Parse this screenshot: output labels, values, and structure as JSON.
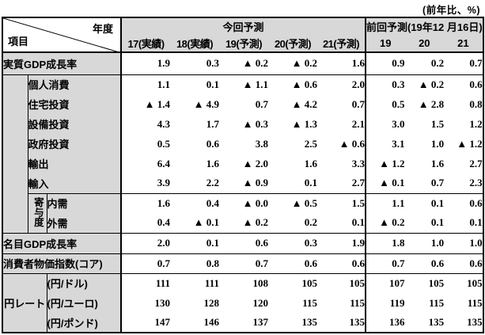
{
  "note": "(前年比、%)",
  "colors": {
    "header_bg": "#d8d8d8",
    "border": "#000000",
    "page_bg": "#ffffff"
  },
  "header": {
    "axis_year": "年度",
    "axis_item": "項目",
    "current_group": "今回予測",
    "current_columns": [
      "17(実績)",
      "18(実績)",
      "19(予測)",
      "20(予測)",
      "21(予測)"
    ],
    "previous_group": "前回予測(19年12 月16日)",
    "previous_columns": [
      "19",
      "20",
      "21"
    ]
  },
  "groups": {
    "contribution": "寄与度",
    "yen_rate": "円レート"
  },
  "rows": [
    {
      "label": "実質GDP成長率",
      "current": [
        "1.9",
        "0.3",
        "▲ 0.2",
        "▲ 0.2",
        "1.6"
      ],
      "previous": [
        "0.9",
        "0.2",
        "0.7"
      ]
    },
    {
      "label": "個人消費",
      "current": [
        "1.1",
        "0.1",
        "▲ 1.1",
        "▲ 0.6",
        "2.0"
      ],
      "previous": [
        "0.3",
        "▲ 0.2",
        "0.6"
      ]
    },
    {
      "label": "住宅投資",
      "current": [
        "▲ 1.4",
        "▲ 4.9",
        "0.7",
        "▲ 4.2",
        "0.7"
      ],
      "previous": [
        "0.5",
        "▲ 2.8",
        "0.8"
      ]
    },
    {
      "label": "設備投資",
      "current": [
        "4.3",
        "1.7",
        "▲ 0.3",
        "▲ 1.3",
        "2.1"
      ],
      "previous": [
        "3.0",
        "1.5",
        "1.2"
      ]
    },
    {
      "label": "政府投資",
      "current": [
        "0.5",
        "0.6",
        "3.8",
        "2.5",
        "▲ 0.6"
      ],
      "previous": [
        "3.1",
        "1.0",
        "▲ 1.2"
      ]
    },
    {
      "label": "輸出",
      "current": [
        "6.4",
        "1.6",
        "▲ 2.0",
        "1.6",
        "3.3"
      ],
      "previous": [
        "▲ 1.2",
        "1.6",
        "2.7"
      ]
    },
    {
      "label": "輸入",
      "current": [
        "3.9",
        "2.2",
        "▲ 0.9",
        "0.1",
        "2.7"
      ],
      "previous": [
        "▲ 0.1",
        "0.7",
        "2.3"
      ]
    },
    {
      "label": "内需",
      "current": [
        "1.6",
        "0.4",
        "▲ 0.0",
        "▲ 0.5",
        "1.5"
      ],
      "previous": [
        "1.1",
        "0.1",
        "0.6"
      ]
    },
    {
      "label": "外需",
      "current": [
        "0.4",
        "▲ 0.1",
        "▲ 0.2",
        "0.2",
        "0.1"
      ],
      "previous": [
        "▲ 0.2",
        "0.1",
        "0.1"
      ]
    },
    {
      "label": "名目GDP成長率",
      "current": [
        "2.0",
        "0.1",
        "0.6",
        "0.3",
        "1.9"
      ],
      "previous": [
        "1.8",
        "1.0",
        "1.0"
      ]
    },
    {
      "label": "消費者物価指数(コア)",
      "current": [
        "0.7",
        "0.8",
        "0.7",
        "0.6",
        "0.6"
      ],
      "previous": [
        "0.7",
        "0.6",
        "0.6"
      ]
    },
    {
      "label": "(円/ドル)",
      "current": [
        "111",
        "111",
        "108",
        "105",
        "105"
      ],
      "previous": [
        "107",
        "105",
        "105"
      ]
    },
    {
      "label": "(円/ユーロ)",
      "current": [
        "130",
        "128",
        "120",
        "115",
        "115"
      ],
      "previous": [
        "119",
        "115",
        "115"
      ]
    },
    {
      "label": "(円/ポンド)",
      "current": [
        "147",
        "146",
        "137",
        "135",
        "135"
      ],
      "previous": [
        "136",
        "135",
        "135"
      ]
    }
  ]
}
